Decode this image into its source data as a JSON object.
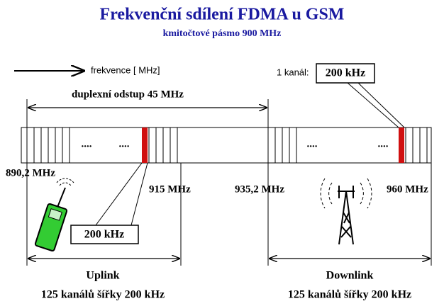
{
  "header": {
    "title": "Frekvenční sdílení FDMA u GSM",
    "subtitle": "kmitočtové pásmo 900 MHz"
  },
  "legend": {
    "arrow_label": "frekvence [ MHz]",
    "channel_label": "1 kanál:",
    "channel_width": "200 kHz"
  },
  "duplex": {
    "label": "duplexní odstup  45 MHz"
  },
  "band": {
    "dots": [
      "....",
      "....",
      "....",
      "...."
    ],
    "frequencies": [
      "890,2 MHz",
      "915 MHz",
      "935,2 MHz",
      "960 MHz"
    ],
    "channel_width": "200 kHz"
  },
  "uplink": {
    "label": "Uplink",
    "channels": "125 kanálů šířky 200 kHz"
  },
  "downlink": {
    "label": "Downlink",
    "channels": "125 kanálů šířky 200 kHz"
  }
}
